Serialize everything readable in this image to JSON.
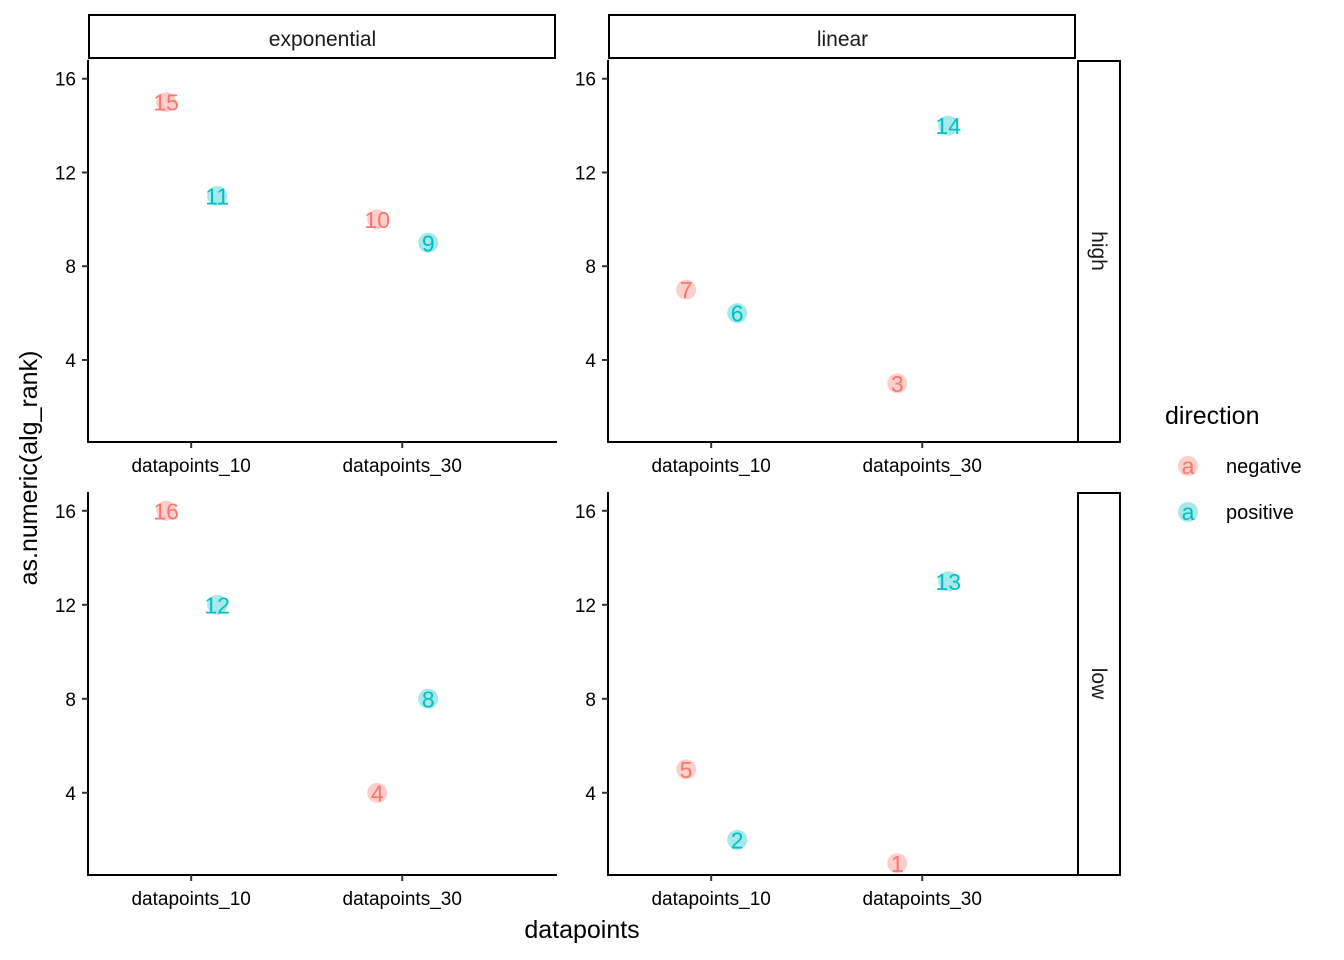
{
  "chart_data": {
    "type": "scatter",
    "facet_cols": [
      "exponential",
      "linear"
    ],
    "facet_rows": [
      "high",
      "low"
    ],
    "categories": [
      "datapoints_10",
      "datapoints_30"
    ],
    "xlabel": "datapoints",
    "ylabel": "as.numeric(alg_rank)",
    "ylim": [
      0.5,
      16.8
    ],
    "yticks": [
      4,
      8,
      12,
      16
    ],
    "legend": {
      "title": "direction",
      "position": "right",
      "key_glyph": "a",
      "entries": [
        {
          "name": "negative",
          "color": "#F8766D"
        },
        {
          "name": "positive",
          "color": "#00BFC4"
        }
      ]
    },
    "series": [
      {
        "name": "negative",
        "color": "#F8766D",
        "points": [
          {
            "col": "exponential",
            "row": "high",
            "x": "datapoints_10",
            "y": 15,
            "label": "15"
          },
          {
            "col": "exponential",
            "row": "high",
            "x": "datapoints_30",
            "y": 10,
            "label": "10"
          },
          {
            "col": "linear",
            "row": "high",
            "x": "datapoints_10",
            "y": 7,
            "label": "7"
          },
          {
            "col": "linear",
            "row": "high",
            "x": "datapoints_30",
            "y": 3,
            "label": "3"
          },
          {
            "col": "exponential",
            "row": "low",
            "x": "datapoints_10",
            "y": 16,
            "label": "16"
          },
          {
            "col": "exponential",
            "row": "low",
            "x": "datapoints_30",
            "y": 4,
            "label": "4"
          },
          {
            "col": "linear",
            "row": "low",
            "x": "datapoints_10",
            "y": 5,
            "label": "5"
          },
          {
            "col": "linear",
            "row": "low",
            "x": "datapoints_30",
            "y": 1,
            "label": "1"
          }
        ]
      },
      {
        "name": "positive",
        "color": "#00BFC4",
        "points": [
          {
            "col": "exponential",
            "row": "high",
            "x": "datapoints_10",
            "y": 11,
            "label": "11"
          },
          {
            "col": "exponential",
            "row": "high",
            "x": "datapoints_30",
            "y": 9,
            "label": "9"
          },
          {
            "col": "linear",
            "row": "high",
            "x": "datapoints_10",
            "y": 6,
            "label": "6"
          },
          {
            "col": "linear",
            "row": "high",
            "x": "datapoints_30",
            "y": 14,
            "label": "14"
          },
          {
            "col": "exponential",
            "row": "low",
            "x": "datapoints_10",
            "y": 12,
            "label": "12"
          },
          {
            "col": "exponential",
            "row": "low",
            "x": "datapoints_30",
            "y": 8,
            "label": "8"
          },
          {
            "col": "linear",
            "row": "low",
            "x": "datapoints_10",
            "y": 2,
            "label": "2"
          },
          {
            "col": "linear",
            "row": "low",
            "x": "datapoints_30",
            "y": 13,
            "label": "13"
          }
        ]
      }
    ]
  }
}
